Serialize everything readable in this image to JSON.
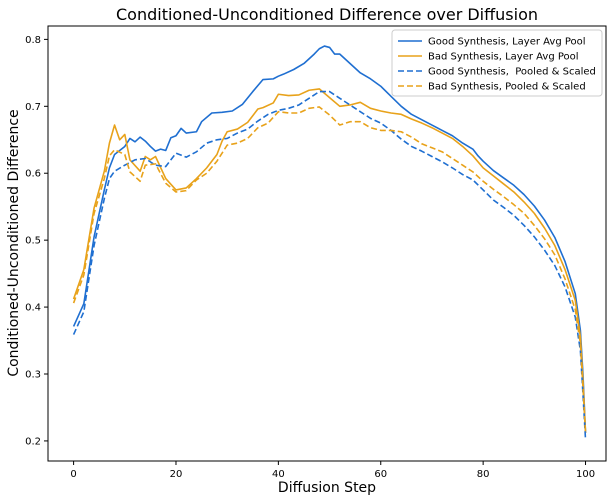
{
  "chart_data": {
    "type": "line",
    "title": "Conditioned-Unconditioned Difference over Diffusion",
    "xlabel": "Diffusion Step",
    "ylabel": "Conditioned-Unconditioned Difference",
    "xlim": [
      -5,
      104
    ],
    "ylim": [
      0.17,
      0.82
    ],
    "xticks": [
      0,
      20,
      40,
      60,
      80,
      100
    ],
    "yticks": [
      0.2,
      0.3,
      0.4,
      0.5,
      0.6,
      0.7,
      0.8
    ],
    "xtick_labels": [
      "0",
      "20",
      "40",
      "60",
      "80",
      "100"
    ],
    "ytick_labels": [
      "0.2",
      "0.3",
      "0.4",
      "0.5",
      "0.6",
      "0.7",
      "0.8"
    ],
    "grid": false,
    "legend_position": "top-right",
    "series": [
      {
        "name": "Good Synthesis, Layer Avg Pool",
        "color": "#1f6fd1",
        "dash": "solid",
        "points": [
          [
            0,
            0.371
          ],
          [
            2,
            0.405
          ],
          [
            4,
            0.505
          ],
          [
            6,
            0.575
          ],
          [
            7,
            0.608
          ],
          [
            8,
            0.628
          ],
          [
            10,
            0.64
          ],
          [
            11,
            0.652
          ],
          [
            12,
            0.647
          ],
          [
            13,
            0.654
          ],
          [
            14,
            0.648
          ],
          [
            15,
            0.64
          ],
          [
            16,
            0.633
          ],
          [
            17,
            0.636
          ],
          [
            18,
            0.634
          ],
          [
            19,
            0.653
          ],
          [
            20,
            0.656
          ],
          [
            21,
            0.667
          ],
          [
            22,
            0.66
          ],
          [
            24,
            0.662
          ],
          [
            25,
            0.677
          ],
          [
            27,
            0.69
          ],
          [
            29,
            0.691
          ],
          [
            31,
            0.693
          ],
          [
            33,
            0.703
          ],
          [
            35,
            0.722
          ],
          [
            37,
            0.74
          ],
          [
            39,
            0.741
          ],
          [
            40,
            0.745
          ],
          [
            41,
            0.748
          ],
          [
            43,
            0.755
          ],
          [
            45,
            0.764
          ],
          [
            47,
            0.778
          ],
          [
            48,
            0.786
          ],
          [
            49,
            0.79
          ],
          [
            50,
            0.788
          ],
          [
            51,
            0.778
          ],
          [
            52,
            0.778
          ],
          [
            54,
            0.764
          ],
          [
            56,
            0.75
          ],
          [
            58,
            0.741
          ],
          [
            60,
            0.73
          ],
          [
            62,
            0.715
          ],
          [
            64,
            0.7
          ],
          [
            66,
            0.688
          ],
          [
            68,
            0.68
          ],
          [
            70,
            0.672
          ],
          [
            72,
            0.664
          ],
          [
            74,
            0.656
          ],
          [
            76,
            0.645
          ],
          [
            78,
            0.636
          ],
          [
            79,
            0.626
          ],
          [
            80,
            0.618
          ],
          [
            82,
            0.604
          ],
          [
            84,
            0.593
          ],
          [
            86,
            0.582
          ],
          [
            88,
            0.568
          ],
          [
            90,
            0.551
          ],
          [
            92,
            0.53
          ],
          [
            94,
            0.504
          ],
          [
            96,
            0.468
          ],
          [
            98,
            0.42
          ],
          [
            99,
            0.365
          ],
          [
            99.5,
            0.3
          ],
          [
            100,
            0.212
          ]
        ]
      },
      {
        "name": "Bad Synthesis, Layer Avg Pool",
        "color": "#e8a21a",
        "dash": "solid",
        "points": [
          [
            0,
            0.412
          ],
          [
            2,
            0.456
          ],
          [
            4,
            0.548
          ],
          [
            6,
            0.603
          ],
          [
            7,
            0.645
          ],
          [
            8,
            0.672
          ],
          [
            9,
            0.65
          ],
          [
            10,
            0.658
          ],
          [
            11,
            0.62
          ],
          [
            13,
            0.603
          ],
          [
            14,
            0.625
          ],
          [
            15,
            0.62
          ],
          [
            16,
            0.625
          ],
          [
            18,
            0.592
          ],
          [
            20,
            0.575
          ],
          [
            22,
            0.578
          ],
          [
            24,
            0.592
          ],
          [
            26,
            0.608
          ],
          [
            28,
            0.628
          ],
          [
            29,
            0.648
          ],
          [
            30,
            0.662
          ],
          [
            32,
            0.666
          ],
          [
            34,
            0.676
          ],
          [
            36,
            0.696
          ],
          [
            37,
            0.698
          ],
          [
            39,
            0.705
          ],
          [
            40,
            0.718
          ],
          [
            42,
            0.716
          ],
          [
            44,
            0.717
          ],
          [
            46,
            0.724
          ],
          [
            48,
            0.726
          ],
          [
            50,
            0.713
          ],
          [
            52,
            0.7
          ],
          [
            54,
            0.702
          ],
          [
            56,
            0.706
          ],
          [
            58,
            0.697
          ],
          [
            60,
            0.693
          ],
          [
            62,
            0.69
          ],
          [
            64,
            0.688
          ],
          [
            66,
            0.681
          ],
          [
            68,
            0.675
          ],
          [
            70,
            0.668
          ],
          [
            72,
            0.66
          ],
          [
            74,
            0.652
          ],
          [
            76,
            0.64
          ],
          [
            78,
            0.626
          ],
          [
            80,
            0.608
          ],
          [
            82,
            0.596
          ],
          [
            84,
            0.584
          ],
          [
            86,
            0.572
          ],
          [
            88,
            0.557
          ],
          [
            90,
            0.54
          ],
          [
            92,
            0.518
          ],
          [
            94,
            0.492
          ],
          [
            96,
            0.456
          ],
          [
            98,
            0.41
          ],
          [
            99,
            0.355
          ],
          [
            99.5,
            0.29
          ],
          [
            100,
            0.212
          ]
        ]
      },
      {
        "name": "Good Synthesis,  Pooled & Scaled",
        "color": "#1f6fd1",
        "dash": "dashed",
        "points": [
          [
            0,
            0.359
          ],
          [
            2,
            0.393
          ],
          [
            4,
            0.492
          ],
          [
            6,
            0.562
          ],
          [
            7,
            0.592
          ],
          [
            8,
            0.603
          ],
          [
            10,
            0.612
          ],
          [
            12,
            0.62
          ],
          [
            14,
            0.622
          ],
          [
            16,
            0.612
          ],
          [
            18,
            0.61
          ],
          [
            20,
            0.63
          ],
          [
            22,
            0.624
          ],
          [
            24,
            0.632
          ],
          [
            26,
            0.645
          ],
          [
            28,
            0.65
          ],
          [
            30,
            0.652
          ],
          [
            32,
            0.66
          ],
          [
            34,
            0.666
          ],
          [
            36,
            0.678
          ],
          [
            38,
            0.688
          ],
          [
            40,
            0.694
          ],
          [
            42,
            0.697
          ],
          [
            44,
            0.702
          ],
          [
            46,
            0.712
          ],
          [
            48,
            0.722
          ],
          [
            50,
            0.722
          ],
          [
            52,
            0.712
          ],
          [
            54,
            0.702
          ],
          [
            56,
            0.692
          ],
          [
            58,
            0.682
          ],
          [
            60,
            0.675
          ],
          [
            62,
            0.664
          ],
          [
            64,
            0.651
          ],
          [
            66,
            0.64
          ],
          [
            68,
            0.633
          ],
          [
            70,
            0.625
          ],
          [
            72,
            0.617
          ],
          [
            74,
            0.608
          ],
          [
            76,
            0.598
          ],
          [
            78,
            0.59
          ],
          [
            80,
            0.575
          ],
          [
            82,
            0.56
          ],
          [
            84,
            0.549
          ],
          [
            86,
            0.537
          ],
          [
            88,
            0.522
          ],
          [
            90,
            0.505
          ],
          [
            92,
            0.485
          ],
          [
            94,
            0.462
          ],
          [
            96,
            0.43
          ],
          [
            98,
            0.385
          ],
          [
            99,
            0.335
          ],
          [
            99.5,
            0.27
          ],
          [
            100,
            0.202
          ]
        ]
      },
      {
        "name": "Bad Synthesis, Pooled & Scaled",
        "color": "#e8a21a",
        "dash": "dashed",
        "points": [
          [
            0,
            0.406
          ],
          [
            2,
            0.448
          ],
          [
            4,
            0.54
          ],
          [
            6,
            0.592
          ],
          [
            7,
            0.626
          ],
          [
            8,
            0.635
          ],
          [
            10,
            0.628
          ],
          [
            11,
            0.602
          ],
          [
            13,
            0.588
          ],
          [
            14,
            0.612
          ],
          [
            16,
            0.614
          ],
          [
            18,
            0.585
          ],
          [
            20,
            0.572
          ],
          [
            22,
            0.574
          ],
          [
            24,
            0.59
          ],
          [
            26,
            0.6
          ],
          [
            28,
            0.618
          ],
          [
            30,
            0.642
          ],
          [
            32,
            0.645
          ],
          [
            34,
            0.652
          ],
          [
            36,
            0.668
          ],
          [
            38,
            0.675
          ],
          [
            40,
            0.692
          ],
          [
            42,
            0.69
          ],
          [
            44,
            0.69
          ],
          [
            46,
            0.697
          ],
          [
            48,
            0.699
          ],
          [
            50,
            0.687
          ],
          [
            52,
            0.672
          ],
          [
            54,
            0.677
          ],
          [
            56,
            0.677
          ],
          [
            58,
            0.668
          ],
          [
            60,
            0.664
          ],
          [
            62,
            0.664
          ],
          [
            64,
            0.662
          ],
          [
            66,
            0.654
          ],
          [
            68,
            0.644
          ],
          [
            70,
            0.638
          ],
          [
            72,
            0.632
          ],
          [
            74,
            0.622
          ],
          [
            76,
            0.612
          ],
          [
            78,
            0.602
          ],
          [
            80,
            0.588
          ],
          [
            82,
            0.576
          ],
          [
            84,
            0.565
          ],
          [
            86,
            0.553
          ],
          [
            88,
            0.54
          ],
          [
            90,
            0.522
          ],
          [
            92,
            0.502
          ],
          [
            94,
            0.478
          ],
          [
            96,
            0.442
          ],
          [
            98,
            0.396
          ],
          [
            99,
            0.345
          ],
          [
            99.5,
            0.28
          ],
          [
            100,
            0.212
          ]
        ]
      }
    ]
  }
}
